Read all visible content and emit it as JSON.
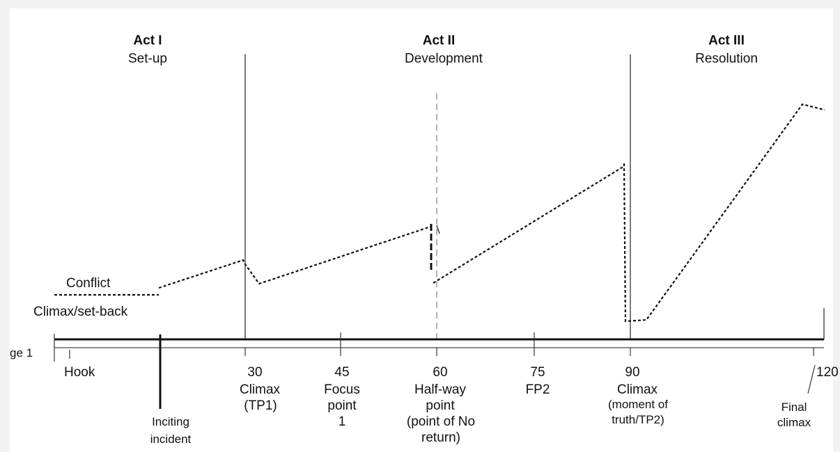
{
  "acts": [
    {
      "title": "Act I",
      "subtitle": "Set-up"
    },
    {
      "title": "Act II",
      "subtitle": "Development"
    },
    {
      "title": "Act III",
      "subtitle": "Resolution"
    }
  ],
  "legend": {
    "conflict": "Conflict",
    "climax_setback": "Climax/set-back"
  },
  "axis": {
    "page_label": "ge 1",
    "hook": "Hook",
    "inciting": [
      "Inciting",
      "incident"
    ],
    "ticks": [
      {
        "value": "30",
        "lines": [
          "Climax",
          "(TP1)"
        ]
      },
      {
        "value": "45",
        "lines": [
          "Focus",
          "point",
          "1"
        ]
      },
      {
        "value": "60",
        "lines": [
          "Half-way",
          "point",
          "(point of No",
          "return)"
        ]
      },
      {
        "value": "75",
        "lines": [
          "FP2"
        ]
      },
      {
        "value": "90",
        "lines": [
          "Climax",
          "(moment of",
          "truth/TP2)"
        ]
      },
      {
        "value": "120",
        "lines": []
      }
    ],
    "final_climax": [
      "Final",
      "climax"
    ]
  },
  "colors": {
    "ink": "#111111",
    "dashed_divider": "#888888"
  }
}
